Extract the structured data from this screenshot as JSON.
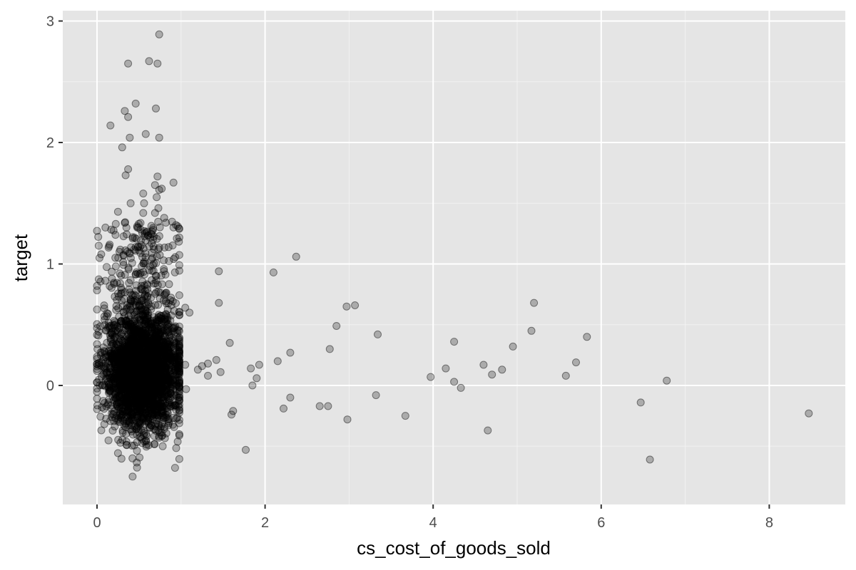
{
  "chart_data": {
    "type": "scatter",
    "title": "",
    "xlabel": "cs_cost_of_goods_sold",
    "ylabel": "target",
    "xlim": [
      -0.4,
      8.9
    ],
    "ylim": [
      -0.97,
      3.1
    ],
    "x_ticks": [
      0,
      2,
      4,
      6,
      8
    ],
    "x_tick_labels": [
      "0",
      "2",
      "4",
      "6",
      "8"
    ],
    "y_ticks": [
      0,
      1,
      2,
      3
    ],
    "y_tick_labels": [
      "0",
      "1",
      "2",
      "3"
    ],
    "x_minor_ticks": [
      1,
      3,
      5,
      7
    ],
    "y_minor_ticks": [
      -0.5,
      0.5,
      1.5,
      2.5
    ],
    "grid": true,
    "legend": "none",
    "colors": {
      "panel_background": "#e5e5e5",
      "grid_major": "#ffffff",
      "grid_minor": "#f2f2f2",
      "point_fill": "#000000",
      "point_fill_opacity": 0.25,
      "point_stroke": "#000000",
      "point_stroke_opacity": 0.45
    },
    "cluster": {
      "description_note": "dense cloud of roughly 3000 points (x 0–1, y mostly -0.5 to 0.8, sparse tail to 2.9)",
      "count": 3000
    },
    "points": [
      [
        1.05,
        0.64
      ],
      [
        1.1,
        0.6
      ],
      [
        1.05,
        0.17
      ],
      [
        1.06,
        -0.03
      ],
      [
        1.2,
        0.13
      ],
      [
        1.25,
        0.16
      ],
      [
        1.32,
        0.18
      ],
      [
        1.32,
        0.08
      ],
      [
        1.42,
        0.21
      ],
      [
        1.45,
        0.94
      ],
      [
        1.45,
        0.68
      ],
      [
        1.47,
        0.11
      ],
      [
        1.58,
        0.35
      ],
      [
        1.6,
        -0.24
      ],
      [
        1.62,
        -0.21
      ],
      [
        1.77,
        -0.53
      ],
      [
        1.83,
        0.14
      ],
      [
        1.85,
        0.0
      ],
      [
        1.9,
        0.06
      ],
      [
        1.93,
        0.17
      ],
      [
        2.1,
        0.93
      ],
      [
        2.15,
        0.2
      ],
      [
        2.22,
        -0.19
      ],
      [
        2.3,
        0.27
      ],
      [
        2.3,
        -0.1
      ],
      [
        2.37,
        1.06
      ],
      [
        2.65,
        -0.17
      ],
      [
        2.75,
        -0.17
      ],
      [
        2.77,
        0.3
      ],
      [
        2.85,
        0.49
      ],
      [
        2.97,
        0.65
      ],
      [
        2.98,
        -0.28
      ],
      [
        3.07,
        0.66
      ],
      [
        3.32,
        -0.08
      ],
      [
        3.34,
        0.42
      ],
      [
        3.67,
        -0.25
      ],
      [
        3.97,
        0.07
      ],
      [
        4.15,
        0.14
      ],
      [
        4.25,
        0.36
      ],
      [
        4.25,
        0.03
      ],
      [
        4.33,
        -0.02
      ],
      [
        4.6,
        0.17
      ],
      [
        4.65,
        -0.37
      ],
      [
        4.7,
        0.09
      ],
      [
        4.82,
        0.13
      ],
      [
        4.95,
        0.32
      ],
      [
        5.17,
        0.45
      ],
      [
        5.2,
        0.68
      ],
      [
        5.58,
        0.08
      ],
      [
        5.7,
        0.19
      ],
      [
        5.83,
        0.4
      ],
      [
        6.47,
        -0.14
      ],
      [
        6.58,
        -0.61
      ],
      [
        6.78,
        0.04
      ],
      [
        8.47,
        -0.23
      ],
      [
        0.74,
        2.89
      ],
      [
        0.62,
        2.67
      ],
      [
        0.72,
        2.65
      ],
      [
        0.37,
        2.65
      ],
      [
        0.46,
        2.32
      ],
      [
        0.33,
        2.26
      ],
      [
        0.7,
        2.28
      ],
      [
        0.37,
        2.21
      ],
      [
        0.16,
        2.14
      ],
      [
        0.58,
        2.07
      ],
      [
        0.39,
        2.04
      ],
      [
        0.74,
        2.04
      ],
      [
        0.3,
        1.96
      ],
      [
        0.37,
        1.78
      ],
      [
        0.72,
        1.72
      ],
      [
        0.34,
        1.73
      ],
      [
        0.91,
        1.67
      ],
      [
        0.69,
        1.65
      ],
      [
        0.77,
        1.62
      ],
      [
        0.74,
        1.61
      ],
      [
        0.55,
        1.58
      ],
      [
        0.71,
        1.55
      ],
      [
        0.4,
        1.5
      ],
      [
        0.56,
        1.5
      ],
      [
        0.25,
        1.43
      ],
      [
        0.73,
        1.46
      ],
      [
        0.55,
        1.42
      ],
      [
        0.69,
        1.42
      ],
      [
        0.8,
        1.38
      ],
      [
        0.82,
        1.34
      ],
      [
        0.1,
        1.3
      ],
      [
        0.35,
        1.3
      ],
      [
        0.49,
        1.3
      ],
      [
        0.94,
        1.32
      ],
      [
        0.22,
        1.24
      ],
      [
        0.59,
        1.26
      ],
      [
        0.95,
        1.21
      ],
      [
        0.15,
        1.16
      ],
      [
        0.02,
        1.15
      ],
      [
        0.46,
        1.14
      ],
      [
        0.05,
        1.08
      ],
      [
        0.03,
        1.05
      ]
    ]
  }
}
